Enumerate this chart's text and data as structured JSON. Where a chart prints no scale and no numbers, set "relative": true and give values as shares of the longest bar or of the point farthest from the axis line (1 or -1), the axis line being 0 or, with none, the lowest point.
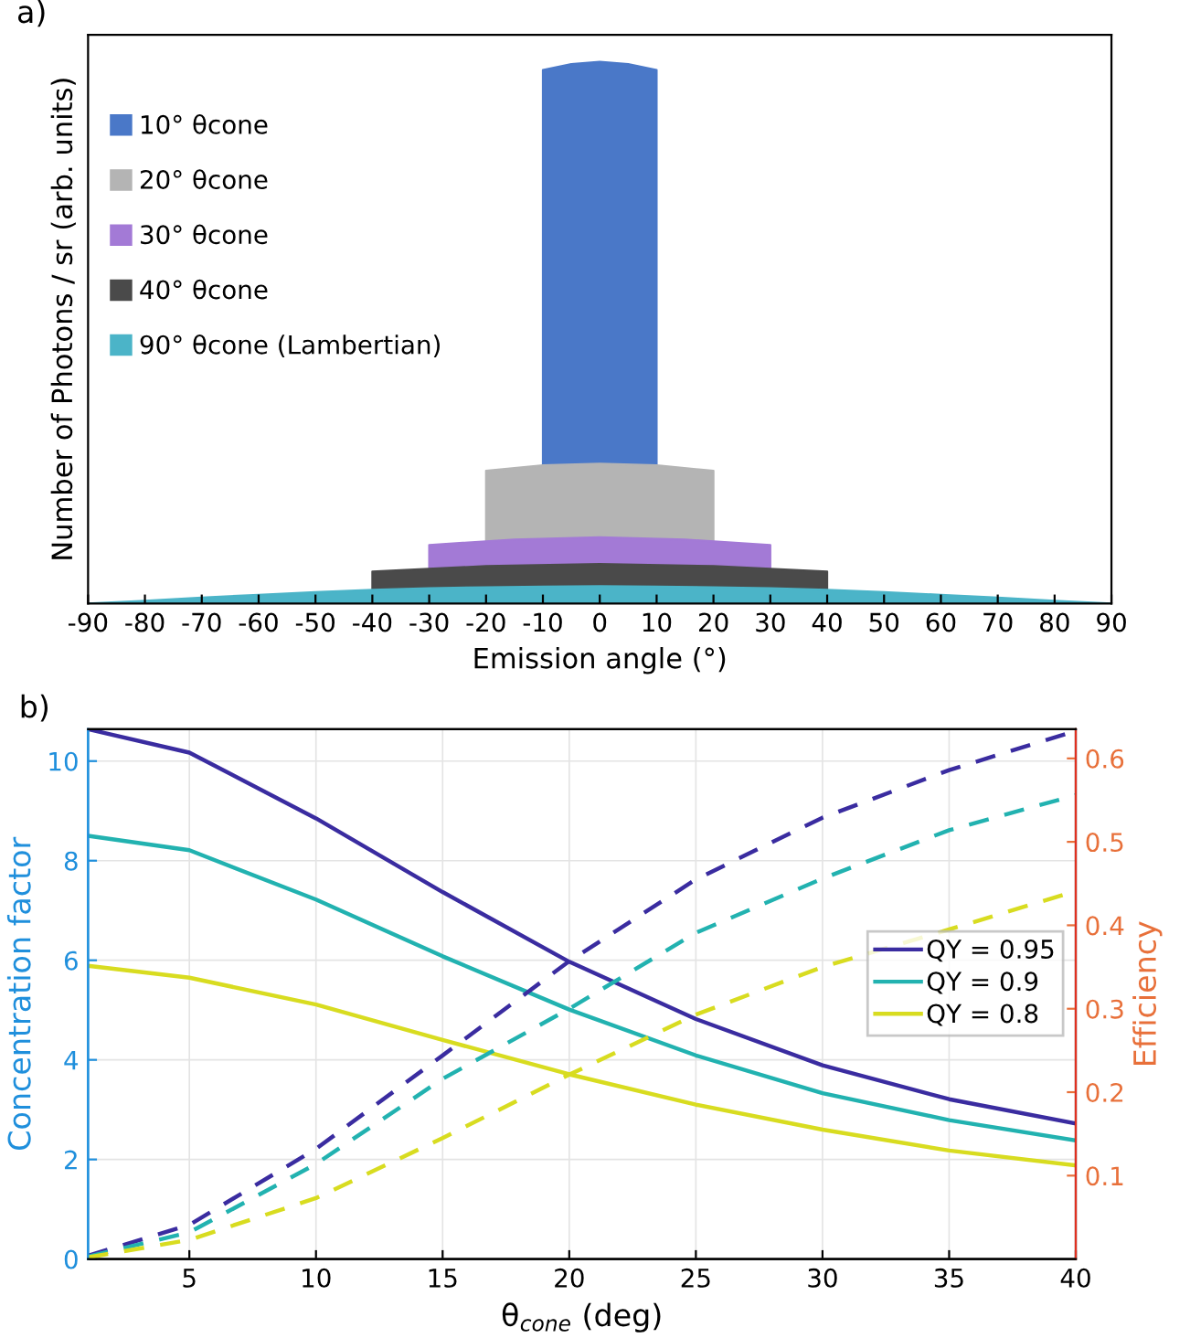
{
  "chart_data": [
    {
      "type": "area",
      "relative": true,
      "annotations": [
        "a)"
      ],
      "xlabel": "Emission angle (°)",
      "ylabel": "Number of Photons / sr (arb. units)",
      "xlim": [
        -90,
        90
      ],
      "xticks": [
        -90,
        -80,
        -70,
        -60,
        -50,
        -40,
        -30,
        -20,
        -10,
        0,
        10,
        20,
        30,
        40,
        50,
        60,
        70,
        80,
        90
      ],
      "tick_labels": "x",
      "grid": false,
      "legend": "top left",
      "series": [
        {
          "name": "10° θcone",
          "color": "#4a78c8",
          "x": [
            -10,
            -5,
            0,
            5,
            10
          ],
          "values": [
            0.985,
            0.996,
            1,
            0.996,
            0.985
          ]
        },
        {
          "name": "20° θcone",
          "color": "#b4b4b4",
          "x": [
            -20,
            -10,
            0,
            10,
            20
          ],
          "values": [
            0.245,
            0.255,
            0.258,
            0.255,
            0.245
          ]
        },
        {
          "name": "30° θcone",
          "color": "#a37ad6",
          "x": [
            -30,
            -15,
            0,
            15,
            30
          ],
          "values": [
            0.108,
            0.118,
            0.122,
            0.118,
            0.108
          ]
        },
        {
          "name": "40° θcone",
          "color": "#4a4a4a",
          "x": [
            -40,
            -20,
            0,
            20,
            40
          ],
          "values": [
            0.059,
            0.069,
            0.073,
            0.069,
            0.059
          ]
        },
        {
          "name": "90° θcone (Lambertian)",
          "color": "#4bb4c8",
          "x": [
            -90,
            -80,
            -70,
            -60,
            -50,
            -40,
            -30,
            -20,
            -10,
            0,
            10,
            20,
            30,
            40,
            50,
            60,
            70,
            80,
            90
          ],
          "values": [
            0,
            0.005,
            0.011,
            0.016,
            0.021,
            0.025,
            0.028,
            0.03,
            0.031,
            0.032,
            0.031,
            0.03,
            0.028,
            0.025,
            0.021,
            0.016,
            0.011,
            0.005,
            0
          ]
        }
      ]
    },
    {
      "type": "line",
      "annotations": [
        "b)"
      ],
      "xlabel": "θ$_{cone}$ (deg)",
      "ylabel": "Concentration factor",
      "y2label": "Efficiency",
      "xlim": [
        1,
        40
      ],
      "xticks": [
        5,
        10,
        15,
        20,
        25,
        30,
        35,
        40
      ],
      "ylim": [
        0,
        10.64
      ],
      "yticks": [
        0,
        2,
        4,
        6,
        8,
        10
      ],
      "y2lim": [
        0,
        0.635
      ],
      "y2ticks": [
        0.1,
        0.2,
        0.3,
        0.4,
        0.5,
        0.6
      ],
      "grid": true,
      "legend": "right",
      "series": [
        {
          "name": "QY = 0.95",
          "color": "#3a2ca0",
          "line_style": "solid",
          "x": [
            1,
            5,
            10,
            15,
            20,
            25,
            30,
            35,
            40
          ],
          "values": [
            10.64,
            10.17,
            8.85,
            7.37,
            5.97,
            4.82,
            3.89,
            3.21,
            2.72
          ]
        },
        {
          "name": "QY = 0.9",
          "color": "#22b2b0",
          "line_style": "solid",
          "x": [
            1,
            5,
            10,
            15,
            20,
            25,
            30,
            35,
            40
          ],
          "values": [
            8.5,
            8.21,
            7.22,
            6.08,
            5.01,
            4.09,
            3.33,
            2.79,
            2.38
          ]
        },
        {
          "name": "QY = 0.8",
          "color": "#d8dc20",
          "line_style": "solid",
          "x": [
            1,
            5,
            10,
            15,
            20,
            25,
            30,
            35,
            40
          ],
          "values": [
            5.89,
            5.65,
            5.11,
            4.4,
            3.71,
            3.1,
            2.6,
            2.18,
            1.88
          ]
        },
        {
          "color": "#3a2ca0",
          "axis": "y2",
          "line_style": "dashed",
          "x": [
            1,
            5,
            10,
            15,
            20,
            25,
            30,
            35,
            40
          ],
          "values": [
            0.004,
            0.041,
            0.132,
            0.244,
            0.357,
            0.455,
            0.529,
            0.586,
            0.633
          ]
        },
        {
          "color": "#22b2b0",
          "axis": "y2",
          "line_style": "dashed",
          "x": [
            1,
            5,
            10,
            15,
            20,
            25,
            30,
            35,
            40
          ],
          "values": [
            0.003,
            0.032,
            0.114,
            0.216,
            0.3,
            0.391,
            0.456,
            0.514,
            0.556
          ]
        },
        {
          "color": "#d8dc20",
          "axis": "y2",
          "line_style": "dashed",
          "x": [
            1,
            5,
            10,
            15,
            20,
            25,
            30,
            35,
            40
          ],
          "values": [
            0.002,
            0.023,
            0.073,
            0.145,
            0.221,
            0.293,
            0.35,
            0.395,
            0.441
          ]
        }
      ]
    }
  ]
}
